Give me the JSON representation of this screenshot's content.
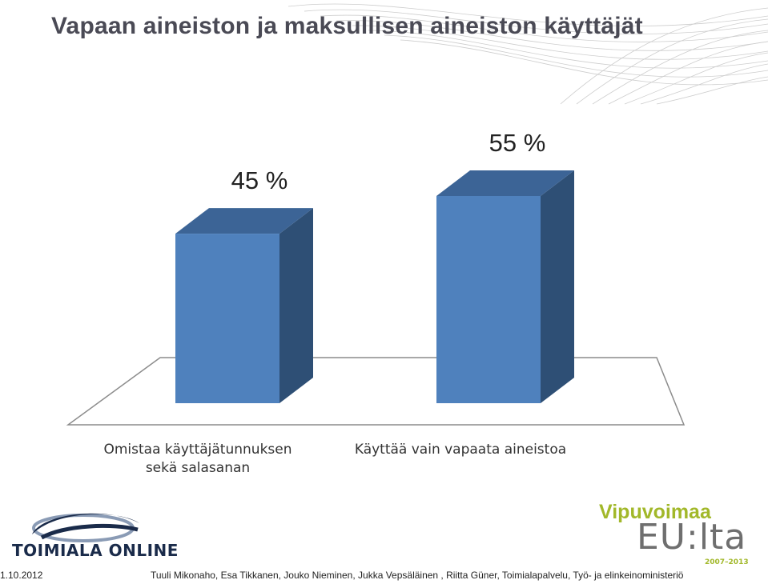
{
  "slide": {
    "title": "Vapaan aineiston ja maksullisen aineiston käyttäjät",
    "footer_date": "1.10.2012",
    "footer_credits": "Tuuli Mikonaho, Esa Tikkanen, Jouko Nieminen, Jukka Vepsäläinen , Riitta Güner, Toimialapalvelu, Työ- ja elinkeinoministeriö"
  },
  "logos": {
    "left_text": "TOIMIALA ONLINE",
    "right_top": "Vipuvoimaa",
    "right_main": "EU:lta",
    "right_years": "2007–2013"
  },
  "chart_data": {
    "type": "bar",
    "style": "3d-column",
    "categories": [
      "Omistaa käyttäjätunnuksen sekä salasanan",
      "Käyttää vain vapaata aineistoa"
    ],
    "values": [
      45,
      55
    ],
    "data_labels": [
      "45 %",
      "55 %"
    ],
    "unit": "%",
    "ylim": [
      0,
      55
    ],
    "grid": false,
    "legend": "none",
    "colors": {
      "front": "#4f81bd",
      "side": "#2e4f75",
      "top": "#3c6496",
      "floor_stroke": "#8c8c8c"
    }
  }
}
